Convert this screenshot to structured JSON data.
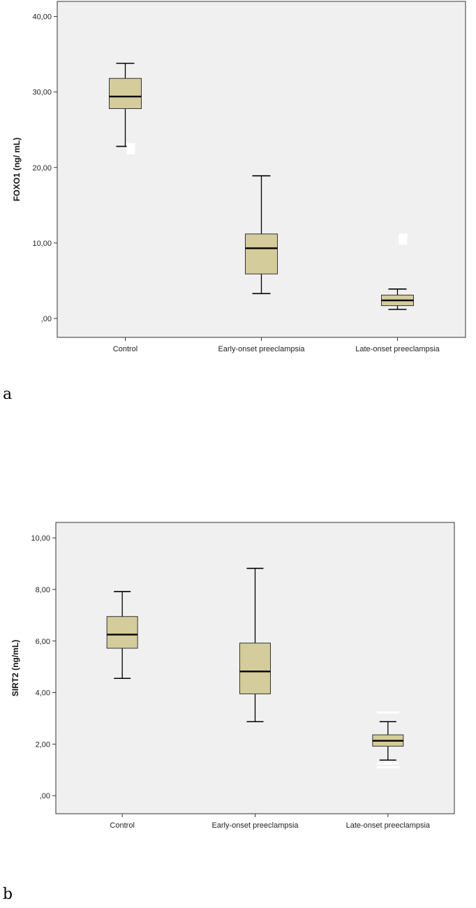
{
  "panels": {
    "a": {
      "letter": "a"
    },
    "b": {
      "letter": "b"
    }
  },
  "colors": {
    "box_fill": "#d4cc9a",
    "plot_bg": "#f0f0f0",
    "outlier": "#ffffff"
  },
  "chart_data": [
    {
      "type": "box",
      "xlabel": "",
      "ylabel": "FOXO1 (ng/ mL)",
      "ylim": [
        -2.5,
        42
      ],
      "yticks": [
        0,
        10,
        20,
        30,
        40
      ],
      "ytick_labels": [
        ",00",
        "10,00",
        "20,00",
        "30,00",
        "40,00"
      ],
      "categories": [
        "Control",
        "Early-onset preeclampsia",
        "Late-onset preeclampsia"
      ],
      "series": [
        {
          "min": 22.8,
          "q1": 27.8,
          "median": 29.4,
          "q3": 31.8,
          "max": 33.8,
          "outliers": [
            22.5
          ]
        },
        {
          "min": 3.3,
          "q1": 5.9,
          "median": 9.3,
          "q3": 11.2,
          "max": 18.9,
          "outliers": []
        },
        {
          "min": 1.2,
          "q1": 1.7,
          "median": 2.4,
          "q3": 3.1,
          "max": 3.9,
          "outliers": [
            10.5
          ]
        }
      ]
    },
    {
      "type": "box",
      "xlabel": "",
      "ylabel": "SIRT2 (ng/mL)",
      "ylim": [
        -0.7,
        10.6
      ],
      "yticks": [
        0,
        2,
        4,
        6,
        8,
        10
      ],
      "ytick_labels": [
        ",00",
        "2,00",
        "4,00",
        "6,00",
        "8,00",
        "10,00"
      ],
      "categories": [
        "Control",
        "Early-onset preeclampsia",
        "Late-onset preeclampsia"
      ],
      "series": [
        {
          "min": 4.55,
          "q1": 5.72,
          "median": 6.25,
          "q3": 6.95,
          "max": 7.92,
          "outliers": []
        },
        {
          "min": 2.87,
          "q1": 3.95,
          "median": 4.82,
          "q3": 5.92,
          "max": 8.82,
          "outliers": []
        },
        {
          "min": 1.38,
          "q1": 1.92,
          "median": 2.13,
          "q3": 2.36,
          "max": 2.87,
          "outliers": [
            3.23,
            1.25,
            1.1
          ]
        }
      ]
    }
  ]
}
